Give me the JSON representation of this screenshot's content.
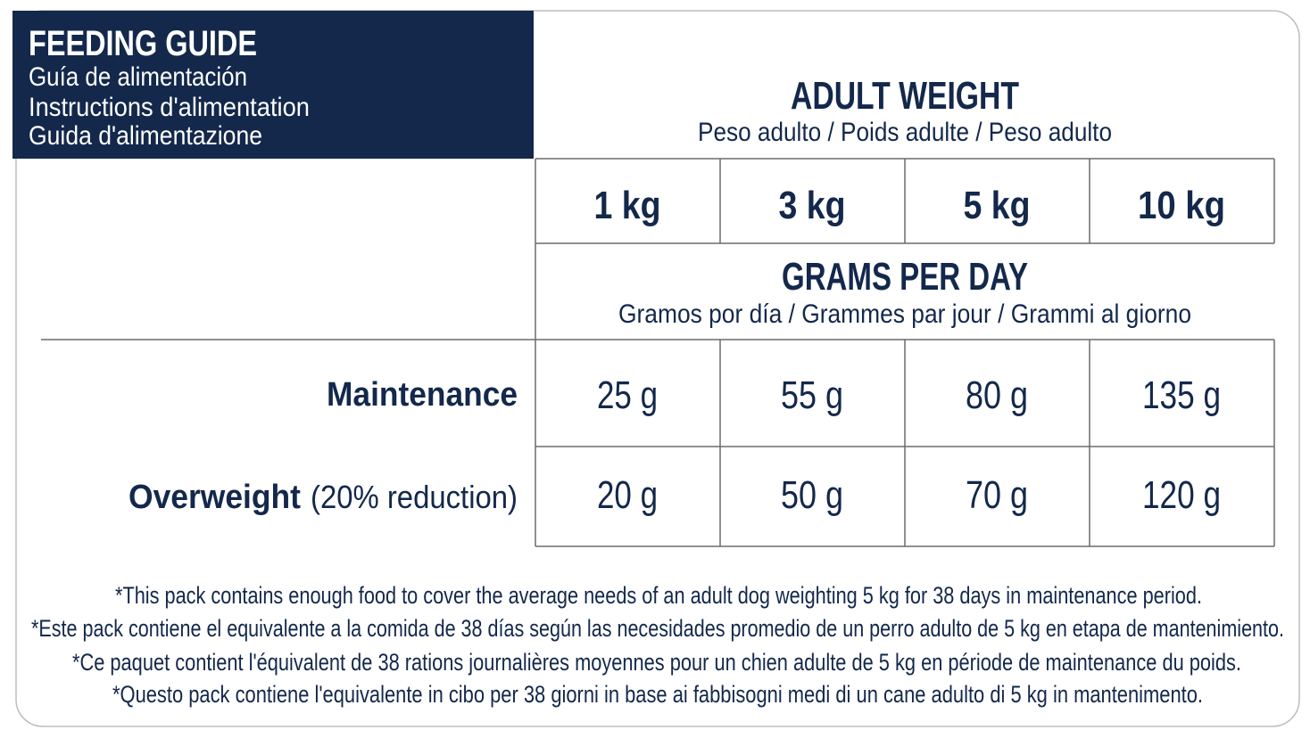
{
  "header": {
    "title": "FEEDING GUIDE",
    "subtitles": [
      "Guía de alimentación",
      "Instructions d'alimentation",
      "Guida d'alimentazione"
    ]
  },
  "table": {
    "group_title": "ADULT WEIGHT",
    "group_subtitle": "Peso adulto / Poids adulte / Peso adulto",
    "columns": [
      "1 kg",
      "3 kg",
      "5 kg",
      "10 kg"
    ],
    "unit_title": "GRAMS PER DAY",
    "unit_subtitle": "Gramos por día / Grammes par jour / Grammi al giorno",
    "rows": [
      {
        "label": "Maintenance",
        "cells": [
          "25 g",
          "55 g",
          "80 g",
          "135 g"
        ]
      },
      {
        "label": "Overweight",
        "note": "(20% reduction)",
        "cells": [
          "20 g",
          "50 g",
          "70 g",
          "120 g"
        ]
      }
    ]
  },
  "footnotes": [
    "*This pack contains enough food to cover the average needs of an adult dog weighting 5 kg for 38 days in maintenance period.",
    "*Este pack contiene el equivalente a la comida de 38 días según las necesidades promedio de un perro adulto de 5 kg en etapa de mantenimiento.",
    "*Ce paquet contient l'équivalent de 38 rations journalières moyennes pour un chien adulte de 5 kg en période de maintenance du poids.",
    "*Questo pack contiene l'equivalente in cibo per 38 giorni in base ai fabbisogni medi di un cane adulto di 5 kg in mantenimento."
  ]
}
